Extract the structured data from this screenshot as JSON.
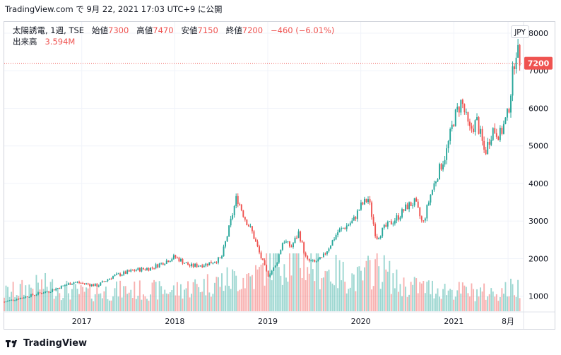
{
  "header": {
    "text": "TradingView.com で 9月 22, 2021 17:03 UTC+9 に公開"
  },
  "legend": {
    "symbol": "太陽誘電, 1週, TSE",
    "open_label": "始値",
    "open": "7300",
    "high_label": "高値",
    "high": "7470",
    "low_label": "安値",
    "low": "7150",
    "close_label": "終値",
    "close": "7200",
    "change": "−460 (−6.01%)",
    "volume_label": "出来高",
    "volume": "3.594M"
  },
  "currency_button": "JPY",
  "last_price_label": "7200",
  "footer": {
    "brand": "TradingView"
  },
  "colors": {
    "up": "#26a69a",
    "down": "#ef5350",
    "grid": "#f0f3fa",
    "axis_text": "#131722"
  },
  "chart_data": {
    "type": "candlestick",
    "timeframe": "1 week",
    "ylim": [
      600,
      8300
    ],
    "yticks": [
      1000,
      2000,
      3000,
      4000,
      5000,
      6000,
      7000,
      8000
    ],
    "xticks": [
      {
        "label": "2017",
        "x": "2017-01"
      },
      {
        "label": "2018",
        "x": "2018-01"
      },
      {
        "label": "2019",
        "x": "2019-01"
      },
      {
        "label": "2020",
        "x": "2020-01"
      },
      {
        "label": "2021",
        "x": "2021-01"
      },
      {
        "label": "8月",
        "x": "2021-08"
      }
    ],
    "xrange": [
      "2016-03",
      "2021-10"
    ],
    "last_price": 7200,
    "price_path": [
      [
        "2016-03",
        850
      ],
      [
        "2016-06",
        1000
      ],
      [
        "2016-09",
        1150
      ],
      [
        "2016-12",
        1380
      ],
      [
        "2017-03",
        1280
      ],
      [
        "2017-05",
        1530
      ],
      [
        "2017-08",
        1700
      ],
      [
        "2017-10",
        1750
      ],
      [
        "2018-01",
        2050
      ],
      [
        "2018-03",
        1800
      ],
      [
        "2018-05",
        1850
      ],
      [
        "2018-07",
        2000
      ],
      [
        "2018-08",
        2800
      ],
      [
        "2018-09",
        3650
      ],
      [
        "2018-10",
        3100
      ],
      [
        "2018-11",
        2700
      ],
      [
        "2018-12",
        2100
      ],
      [
        "2019-01",
        1550
      ],
      [
        "2019-02",
        1800
      ],
      [
        "2019-03",
        2500
      ],
      [
        "2019-04",
        2300
      ],
      [
        "2019-05",
        2700
      ],
      [
        "2019-06",
        1950
      ],
      [
        "2019-07",
        1900
      ],
      [
        "2019-08",
        2000
      ],
      [
        "2019-10",
        2700
      ],
      [
        "2019-12",
        3000
      ],
      [
        "2020-01",
        3400
      ],
      [
        "2020-02",
        3600
      ],
      [
        "2020-03",
        2550
      ],
      [
        "2020-04",
        2800
      ],
      [
        "2020-06",
        3150
      ],
      [
        "2020-07",
        3400
      ],
      [
        "2020-08",
        3500
      ],
      [
        "2020-09",
        2900
      ],
      [
        "2020-10",
        3700
      ],
      [
        "2020-11",
        4300
      ],
      [
        "2020-12",
        4800
      ],
      [
        "2021-01",
        5700
      ],
      [
        "2021-02",
        6200
      ],
      [
        "2021-03",
        5400
      ],
      [
        "2021-04",
        5650
      ],
      [
        "2021-05",
        4800
      ],
      [
        "2021-06",
        5450
      ],
      [
        "2021-07",
        5300
      ],
      [
        "2021-08",
        5850
      ],
      [
        "2021-09",
        7600
      ],
      [
        "2021-09-22",
        7200
      ]
    ],
    "volume_path": [
      [
        "2016-03",
        0.35
      ],
      [
        "2016-08",
        0.5
      ],
      [
        "2017-01",
        0.35
      ],
      [
        "2017-06",
        0.4
      ],
      [
        "2018-01",
        0.4
      ],
      [
        "2018-08",
        0.6
      ],
      [
        "2018-12",
        0.7
      ],
      [
        "2019-01",
        1.0
      ],
      [
        "2019-05",
        1.0
      ],
      [
        "2019-08",
        0.8
      ],
      [
        "2020-01",
        0.6
      ],
      [
        "2020-03",
        0.9
      ],
      [
        "2020-06",
        0.5
      ],
      [
        "2021-01",
        0.4
      ],
      [
        "2021-06",
        0.35
      ],
      [
        "2021-09",
        0.45
      ]
    ]
  }
}
